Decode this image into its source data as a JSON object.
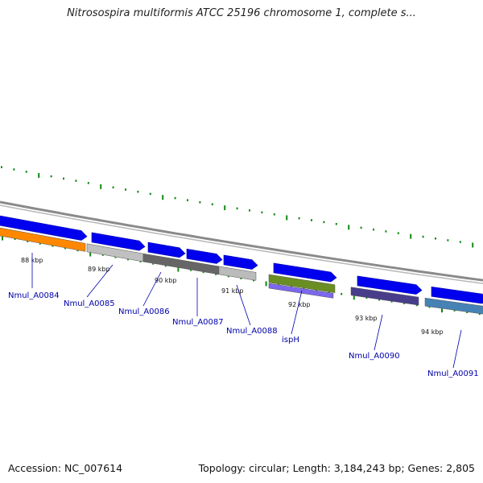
{
  "title": "Nitrosospira multiformis ATCC 25196 chromosome 1, complete s...",
  "footer": {
    "accession": "Accession: NC_007614",
    "summary": "Topology: circular; Length: 3,184,243 bp; Genes: 2,805"
  },
  "colors": {
    "backbone": "#888888",
    "tick": "#118811",
    "forward_arrow": "#0000ee",
    "label": "#0000aa"
  },
  "scale_labels": [
    "88 kbp",
    "89 kbp",
    "90 kbp",
    "91 kbp",
    "92 kbp",
    "93 kbp",
    "94 kbp"
  ],
  "genes": [
    {
      "name": "Nmul_A0084",
      "color": "#ff8800"
    },
    {
      "name": "Nmul_A0085",
      "color": "#c0c0c0"
    },
    {
      "name": "Nmul_A0086",
      "color": "#666666"
    },
    {
      "name": "Nmul_A0087",
      "color": "#666666"
    },
    {
      "name": "Nmul_A0088",
      "color": "#bbbbbb"
    },
    {
      "name": "ispH",
      "color": "#6b8e23"
    },
    {
      "name": "Nmul_A0090",
      "color": "#483d8b"
    },
    {
      "name": "Nmul_A0091",
      "color": "#4682b4"
    }
  ]
}
